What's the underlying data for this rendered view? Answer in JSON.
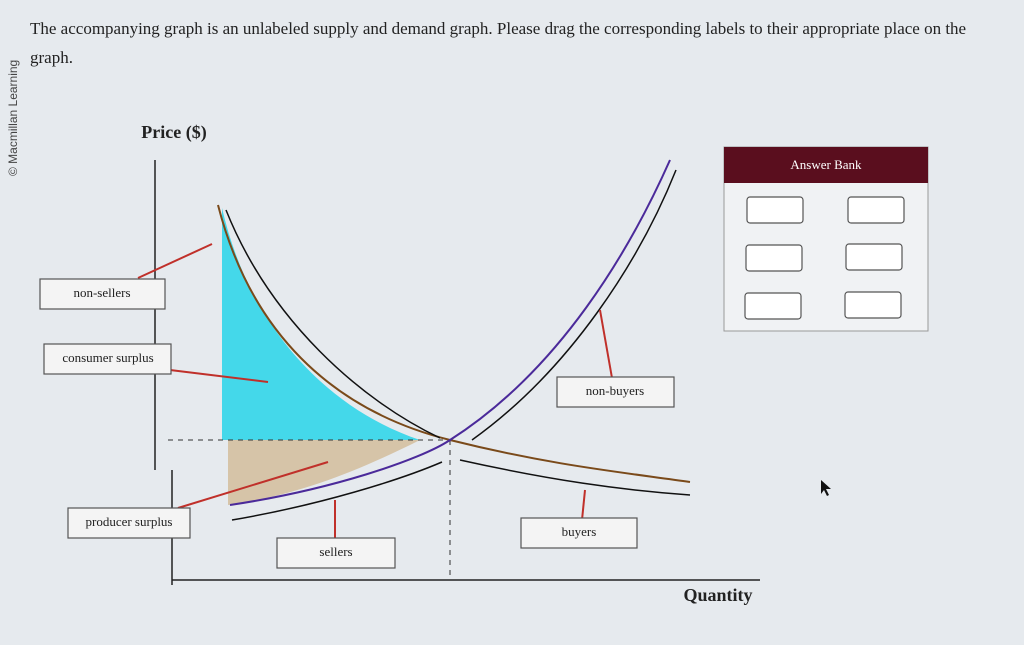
{
  "question": {
    "text": "The accompanying graph is an unlabeled supply and demand graph. Please drag the corresponding labels to their appropriate place on the graph.",
    "credit": "© Macmillan Learning"
  },
  "graph": {
    "y_axis_label": "Price ($)",
    "x_axis_label": "Quantity",
    "labels": [
      "non-sellers",
      "consumer surplus",
      "producer surplus",
      "sellers",
      "non-buyers",
      "buyers"
    ]
  },
  "answer_bank": {
    "title": "Answer Bank"
  }
}
